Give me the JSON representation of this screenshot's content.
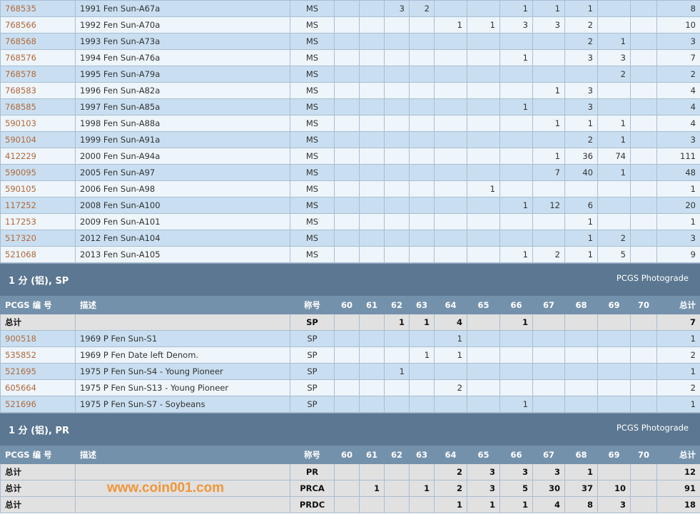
{
  "grades": [
    "60",
    "61",
    "62",
    "63",
    "64",
    "65",
    "66",
    "67",
    "68",
    "69",
    "70"
  ],
  "headers": {
    "pcgs": "PCGS 编 号",
    "desc": "描述",
    "grade": "称号",
    "total": "总计"
  },
  "top_rows": [
    {
      "pcgs": "768535",
      "desc": "1991 Fen Sun-A67a",
      "grade": "MS",
      "v": [
        "",
        "",
        "3",
        "2",
        "",
        "",
        "1",
        "1",
        "1",
        "",
        ""
      ],
      "total": "8"
    },
    {
      "pcgs": "768566",
      "desc": "1992 Fen Sun-A70a",
      "grade": "MS",
      "v": [
        "",
        "",
        "",
        "",
        "1",
        "1",
        "3",
        "3",
        "2",
        "",
        ""
      ],
      "total": "10"
    },
    {
      "pcgs": "768568",
      "desc": "1993 Fen Sun-A73a",
      "grade": "MS",
      "v": [
        "",
        "",
        "",
        "",
        "",
        "",
        "",
        "",
        "2",
        "1",
        ""
      ],
      "total": "3"
    },
    {
      "pcgs": "768576",
      "desc": "1994 Fen Sun-A76a",
      "grade": "MS",
      "v": [
        "",
        "",
        "",
        "",
        "",
        "",
        "1",
        "",
        "3",
        "3",
        ""
      ],
      "total": "7"
    },
    {
      "pcgs": "768578",
      "desc": "1995 Fen Sun-A79a",
      "grade": "MS",
      "v": [
        "",
        "",
        "",
        "",
        "",
        "",
        "",
        "",
        "",
        "2",
        ""
      ],
      "total": "2"
    },
    {
      "pcgs": "768583",
      "desc": "1996 Fen Sun-A82a",
      "grade": "MS",
      "v": [
        "",
        "",
        "",
        "",
        "",
        "",
        "",
        "1",
        "3",
        "",
        ""
      ],
      "total": "4"
    },
    {
      "pcgs": "768585",
      "desc": "1997 Fen Sun-A85a",
      "grade": "MS",
      "v": [
        "",
        "",
        "",
        "",
        "",
        "",
        "1",
        "",
        "3",
        "",
        ""
      ],
      "total": "4"
    },
    {
      "pcgs": "590103",
      "desc": "1998 Fen Sun-A88a",
      "grade": "MS",
      "v": [
        "",
        "",
        "",
        "",
        "",
        "",
        "",
        "1",
        "1",
        "1",
        ""
      ],
      "total": "4"
    },
    {
      "pcgs": "590104",
      "desc": "1999 Fen Sun-A91a",
      "grade": "MS",
      "v": [
        "",
        "",
        "",
        "",
        "",
        "",
        "",
        "",
        "2",
        "1",
        ""
      ],
      "total": "3"
    },
    {
      "pcgs": "412229",
      "desc": "2000 Fen Sun-A94a",
      "grade": "MS",
      "v": [
        "",
        "",
        "",
        "",
        "",
        "",
        "",
        "1",
        "36",
        "74",
        ""
      ],
      "total": "111"
    },
    {
      "pcgs": "590095",
      "desc": "2005 Fen Sun-A97",
      "grade": "MS",
      "v": [
        "",
        "",
        "",
        "",
        "",
        "",
        "",
        "7",
        "40",
        "1",
        ""
      ],
      "total": "48"
    },
    {
      "pcgs": "590105",
      "desc": "2006 Fen Sun-A98",
      "grade": "MS",
      "v": [
        "",
        "",
        "",
        "",
        "",
        "1",
        "",
        "",
        "",
        "",
        ""
      ],
      "total": "1"
    },
    {
      "pcgs": "117252",
      "desc": "2008 Fen Sun-A100",
      "grade": "MS",
      "v": [
        "",
        "",
        "",
        "",
        "",
        "",
        "1",
        "12",
        "6",
        "",
        ""
      ],
      "total": "20"
    },
    {
      "pcgs": "117253",
      "desc": "2009 Fen Sun-A101",
      "grade": "MS",
      "v": [
        "",
        "",
        "",
        "",
        "",
        "",
        "",
        "",
        "1",
        "",
        ""
      ],
      "total": "1"
    },
    {
      "pcgs": "517320",
      "desc": "2012 Fen Sun-A104",
      "grade": "MS",
      "v": [
        "",
        "",
        "",
        "",
        "",
        "",
        "",
        "",
        "1",
        "2",
        ""
      ],
      "total": "3"
    },
    {
      "pcgs": "521068",
      "desc": "2013 Fen Sun-A105",
      "grade": "MS",
      "v": [
        "",
        "",
        "",
        "",
        "",
        "",
        "1",
        "2",
        "1",
        "5",
        ""
      ],
      "total": "9"
    }
  ],
  "sp": {
    "title": "1 分 (铝), SP",
    "photograde": "PCGS Photograde",
    "totals": [
      {
        "label": "总计",
        "grade": "SP",
        "v": [
          "",
          "",
          "1",
          "1",
          "4",
          "",
          "1",
          "",
          "",
          "",
          ""
        ],
        "total": "7"
      }
    ],
    "rows": [
      {
        "pcgs": "900518",
        "desc": "1969 P Fen Sun-S1",
        "grade": "SP",
        "v": [
          "",
          "",
          "",
          "",
          "1",
          "",
          "",
          "",
          "",
          "",
          ""
        ],
        "total": "1"
      },
      {
        "pcgs": "535852",
        "desc": "1969 P Fen Date left Denom.",
        "grade": "SP",
        "v": [
          "",
          "",
          "",
          "1",
          "1",
          "",
          "",
          "",
          "",
          "",
          ""
        ],
        "total": "2"
      },
      {
        "pcgs": "521695",
        "desc": "1975 P Fen Sun-S4 - Young Pioneer",
        "grade": "SP",
        "v": [
          "",
          "",
          "1",
          "",
          "",
          "",
          "",
          "",
          "",
          "",
          ""
        ],
        "total": "1"
      },
      {
        "pcgs": "605664",
        "desc": "1975 P Fen Sun-S13 - Young Pioneer",
        "grade": "SP",
        "v": [
          "",
          "",
          "",
          "",
          "2",
          "",
          "",
          "",
          "",
          "",
          ""
        ],
        "total": "2"
      },
      {
        "pcgs": "521696",
        "desc": "1975 P Fen Sun-S7 - Soybeans",
        "grade": "SP",
        "v": [
          "",
          "",
          "",
          "",
          "",
          "",
          "1",
          "",
          "",
          "",
          ""
        ],
        "total": "1"
      }
    ]
  },
  "pr": {
    "title": "1 分 (铝), PR",
    "photograde": "PCGS Photograde",
    "totals": [
      {
        "label": "总计",
        "grade": "PR",
        "v": [
          "",
          "",
          "",
          "",
          "2",
          "3",
          "3",
          "3",
          "1",
          "",
          ""
        ],
        "total": "12"
      },
      {
        "label": "总计",
        "grade": "PRCA",
        "v": [
          "",
          "1",
          "",
          "1",
          "2",
          "3",
          "5",
          "30",
          "37",
          "10",
          ""
        ],
        "total": "91"
      },
      {
        "label": "总计",
        "grade": "PRDC",
        "v": [
          "",
          "",
          "",
          "",
          "1",
          "1",
          "1",
          "4",
          "8",
          "3",
          ""
        ],
        "total": "18"
      }
    ],
    "rows": []
  },
  "watermark": "www.coin001.com"
}
